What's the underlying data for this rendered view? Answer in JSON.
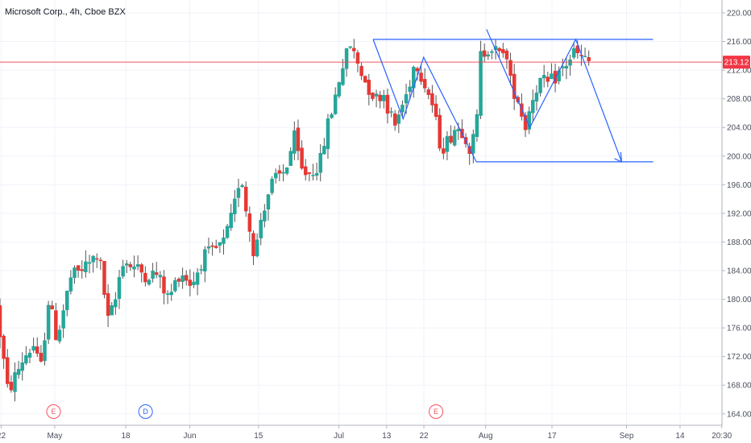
{
  "chart_data": {
    "type": "candlestick",
    "title": "Microsoft Corp., 4h, Cboe BZX",
    "ylim": [
      162.4,
      221.8
    ],
    "y_ticks": [
      164,
      168,
      172,
      176,
      180,
      184,
      188,
      192,
      196,
      200,
      204,
      208,
      212,
      216,
      220
    ],
    "x_ticks": [
      {
        "label": "22",
        "t": 0.05
      },
      {
        "label": "May",
        "t": 2.35
      },
      {
        "label": "18",
        "t": 5.4
      },
      {
        "label": "Jun",
        "t": 8.15
      },
      {
        "label": "15",
        "t": 11.1
      },
      {
        "label": "Jul",
        "t": 14.55
      },
      {
        "label": "13",
        "t": 16.6
      },
      {
        "label": "22",
        "t": 18.2
      },
      {
        "label": "Aug",
        "t": 20.85
      },
      {
        "label": "17",
        "t": 23.7
      },
      {
        "label": "Sep",
        "t": 26.9
      },
      {
        "label": "14",
        "t": 29.2
      },
      {
        "label": "20:30",
        "t": 30.99
      }
    ],
    "current_price": {
      "value": 213.12,
      "label": "213.12",
      "color": "#f23645"
    },
    "colors": {
      "up": "#26a69a",
      "down": "#e53935",
      "wick": "#555555",
      "drawing": "#2962ff",
      "grid": "#f0f3fa"
    },
    "earnings_markers": [
      {
        "label": "E",
        "t": 2.3,
        "color": "#f7525f"
      },
      {
        "label": "D",
        "t": 6.25,
        "color": "#2962ff"
      },
      {
        "label": "E",
        "t": 18.72,
        "color": "#f7525f"
      }
    ],
    "candle_path": [
      [
        0,
        179
      ],
      [
        0.5,
        167
      ],
      [
        1.2,
        172
      ],
      [
        1.6,
        173.5
      ],
      [
        1.9,
        170
      ],
      [
        2.25,
        180
      ],
      [
        2.6,
        174.5
      ],
      [
        3.2,
        183
      ],
      [
        4.0,
        185
      ],
      [
        4.4,
        186.5
      ],
      [
        4.8,
        177
      ],
      [
        5.1,
        179.5
      ],
      [
        5.4,
        185.5
      ],
      [
        5.9,
        184.5
      ],
      [
        6.4,
        183.5
      ],
      [
        6.9,
        183.5
      ],
      [
        7.4,
        180
      ],
      [
        7.9,
        184
      ],
      [
        8.4,
        182
      ],
      [
        8.9,
        186
      ],
      [
        9.3,
        186.5
      ],
      [
        9.8,
        188
      ],
      [
        10.2,
        192.5
      ],
      [
        10.5,
        198
      ],
      [
        10.7,
        193
      ],
      [
        11.1,
        186
      ],
      [
        11.4,
        192
      ],
      [
        11.8,
        196
      ],
      [
        12.4,
        198
      ],
      [
        12.8,
        202.5
      ],
      [
        13.1,
        198
      ],
      [
        13.4,
        197.5
      ],
      [
        13.9,
        199
      ],
      [
        14.2,
        204
      ],
      [
        14.5,
        207.5
      ],
      [
        14.8,
        212
      ],
      [
        15.2,
        215.5
      ],
      [
        15.9,
        210
      ],
      [
        16.3,
        208
      ],
      [
        16.6,
        209
      ],
      [
        17.1,
        204
      ],
      [
        17.3,
        206
      ],
      [
        17.6,
        208.5
      ],
      [
        18.0,
        213.5
      ],
      [
        18.3,
        211
      ],
      [
        18.7,
        207.5
      ],
      [
        19.1,
        201
      ],
      [
        19.4,
        202.2
      ],
      [
        19.7,
        204
      ],
      [
        20.1,
        203.5
      ],
      [
        20.3,
        201
      ],
      [
        20.6,
        203
      ],
      [
        20.8,
        214
      ],
      [
        21.2,
        215.5
      ],
      [
        21.6,
        214
      ],
      [
        21.8,
        215.5
      ],
      [
        22.1,
        210
      ],
      [
        22.4,
        208
      ],
      [
        22.7,
        204
      ],
      [
        23.0,
        208
      ],
      [
        23.3,
        210.5
      ],
      [
        23.7,
        210
      ],
      [
        24.0,
        211
      ],
      [
        24.4,
        212.5
      ],
      [
        24.8,
        214.5
      ],
      [
        25.2,
        213.5
      ],
      [
        25.4,
        213.12
      ]
    ],
    "drawings": [
      {
        "kind": "line",
        "points": [
          [
            16.02,
            216.3
          ],
          [
            28.04,
            216.3
          ]
        ]
      },
      {
        "kind": "line",
        "points": [
          [
            20.45,
            199.2
          ],
          [
            28.04,
            199.2
          ]
        ]
      },
      {
        "kind": "polyline",
        "points": [
          [
            16.02,
            216.3
          ],
          [
            17.31,
            205.2
          ],
          [
            18.19,
            213.8
          ],
          [
            20.45,
            199.2
          ]
        ]
      },
      {
        "kind": "polyline",
        "points": [
          [
            20.89,
            217.7
          ],
          [
            22.75,
            204
          ],
          [
            24.72,
            216.3
          ],
          [
            26.69,
            199.2
          ]
        ]
      },
      {
        "kind": "arrow_head",
        "at": [
          26.69,
          199.2
        ]
      }
    ]
  }
}
